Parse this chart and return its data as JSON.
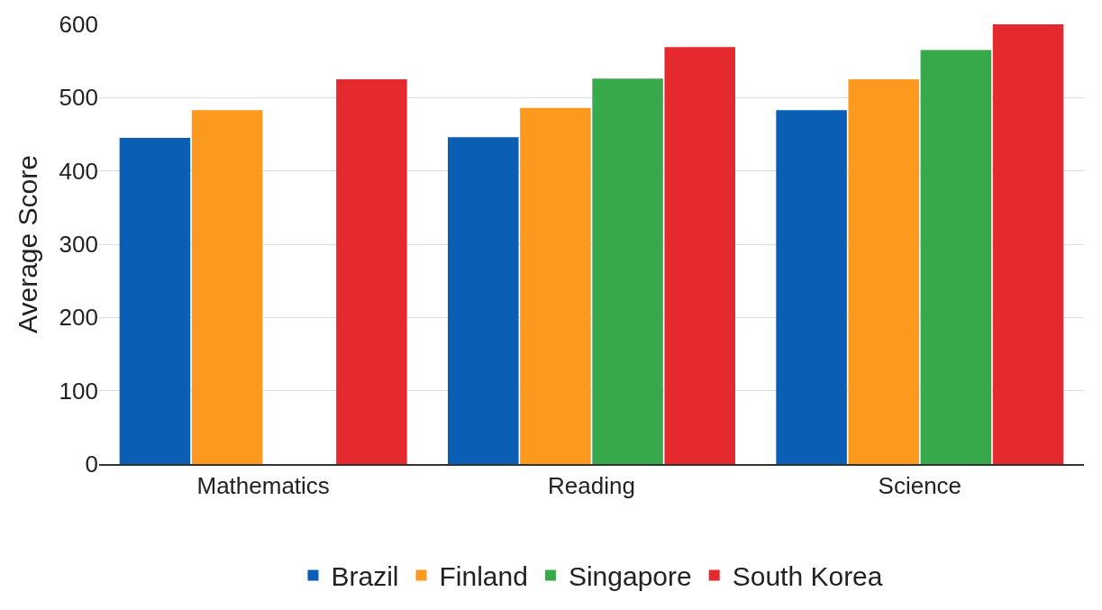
{
  "chart_data": {
    "type": "bar",
    "ylabel": "Average Score",
    "categories": [
      "Mathematics",
      "Reading",
      "Science"
    ],
    "series": [
      {
        "name": "Brazil",
        "color": "#0a5fb4",
        "values": [
          445,
          446,
          483
        ]
      },
      {
        "name": "Finland",
        "color": "#fb9a1e",
        "values": [
          483,
          486,
          525
        ]
      },
      {
        "name": "Singapore",
        "color": "#37a94a",
        "values": [
          null,
          526,
          565
        ]
      },
      {
        "name": "South Korea",
        "color": "#e42a2f",
        "values": [
          525,
          569,
          600
        ]
      }
    ],
    "ylim": [
      0,
      600
    ],
    "yticks": [
      0,
      100,
      200,
      300,
      400,
      500,
      600
    ],
    "grid": "y",
    "legend": "bottom"
  }
}
